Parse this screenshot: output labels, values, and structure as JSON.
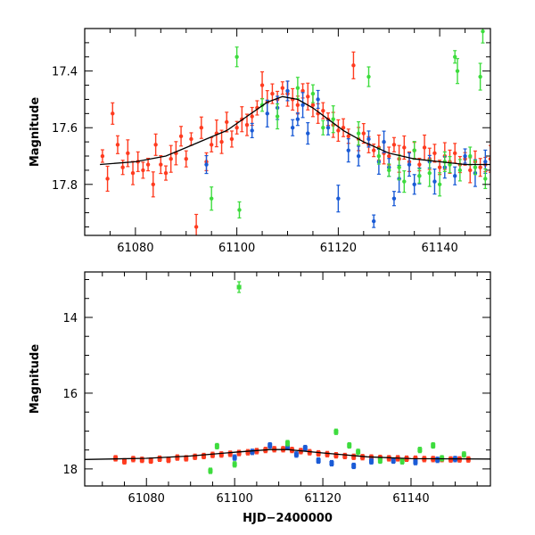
{
  "colors": {
    "red": "#ff3b1f",
    "blue": "#1a5bd6",
    "green": "#3ddc3d",
    "model": "#000000"
  },
  "chart_data": [
    {
      "type": "scatter",
      "title": "",
      "xlabel": "",
      "ylabel": "Magnitude",
      "xlim": [
        61070,
        61150
      ],
      "ylim": [
        17.98,
        17.25
      ],
      "y_inverted": true,
      "xticks": [
        61080,
        61100,
        61120,
        61140
      ],
      "xtick_labels": [
        "61080",
        "61100",
        "61120",
        "61140"
      ],
      "yticks": [
        17.4,
        17.6,
        17.8
      ],
      "ytick_labels": [
        "17.4",
        "17.6",
        "17.8"
      ],
      "series": [
        {
          "name": "red",
          "color_key": "red",
          "points": [
            [
              61073.5,
              17.7
            ],
            [
              61074.5,
              17.78
            ],
            [
              61075.5,
              17.55
            ],
            [
              61076.5,
              17.66
            ],
            [
              61077.5,
              17.74
            ],
            [
              61078.5,
              17.69
            ],
            [
              61079.5,
              17.76
            ],
            [
              61080.5,
              17.72
            ],
            [
              61081.5,
              17.75
            ],
            [
              61082.5,
              17.73
            ],
            [
              61083.5,
              17.8
            ],
            [
              61084,
              17.66
            ],
            [
              61085,
              17.73
            ],
            [
              61086,
              17.76
            ],
            [
              61087,
              17.71
            ],
            [
              61088,
              17.69
            ],
            [
              61089,
              17.63
            ],
            [
              61090,
              17.71
            ],
            [
              61091,
              17.64
            ],
            [
              61092,
              17.95
            ],
            [
              61093,
              17.6
            ],
            [
              61094,
              17.72
            ],
            [
              61095,
              17.66
            ],
            [
              61096,
              17.62
            ],
            [
              61097,
              17.65
            ],
            [
              61098,
              17.58
            ],
            [
              61099,
              17.64
            ],
            [
              61100,
              17.6
            ],
            [
              61101,
              17.57
            ],
            [
              61102,
              17.59
            ],
            [
              61103,
              17.56
            ],
            [
              61104,
              17.53
            ],
            [
              61105,
              17.45
            ],
            [
              61106,
              17.51
            ],
            [
              61107,
              17.48
            ],
            [
              61108,
              17.5
            ],
            [
              61109,
              17.46
            ],
            [
              61110,
              17.48
            ],
            [
              61111,
              17.5
            ],
            [
              61112,
              17.52
            ],
            [
              61113,
              17.47
            ],
            [
              61114,
              17.49
            ],
            [
              61115,
              17.52
            ],
            [
              61116,
              17.55
            ],
            [
              61117,
              17.54
            ],
            [
              61118,
              17.57
            ],
            [
              61119,
              17.59
            ],
            [
              61120,
              17.61
            ],
            [
              61121,
              17.6
            ],
            [
              61122,
              17.63
            ],
            [
              61123,
              17.38
            ],
            [
              61124,
              17.64
            ],
            [
              61125,
              17.62
            ],
            [
              61126,
              17.66
            ],
            [
              61127,
              17.68
            ],
            [
              61128,
              17.67
            ],
            [
              61129,
              17.69
            ],
            [
              61130,
              17.7
            ],
            [
              61131,
              17.66
            ],
            [
              61132,
              17.71
            ],
            [
              61133,
              17.67
            ],
            [
              61134,
              17.72
            ],
            [
              61135,
              17.68
            ],
            [
              61136,
              17.73
            ],
            [
              61137,
              17.67
            ],
            [
              61138,
              17.71
            ],
            [
              61139,
              17.69
            ],
            [
              61140,
              17.74
            ],
            [
              61141,
              17.7
            ],
            [
              61142,
              17.72
            ],
            [
              61143,
              17.69
            ],
            [
              61144,
              17.73
            ],
            [
              61145,
              17.71
            ],
            [
              61146,
              17.75
            ],
            [
              61147,
              17.72
            ],
            [
              61148,
              17.74
            ],
            [
              61149,
              17.73
            ],
            [
              61150,
              17.71
            ]
          ]
        },
        {
          "name": "blue",
          "color_key": "blue",
          "points": [
            [
              61094,
              17.73
            ],
            [
              61103,
              17.61
            ],
            [
              61106,
              17.55
            ],
            [
              61108,
              17.53
            ],
            [
              61110,
              17.47
            ],
            [
              61111,
              17.6
            ],
            [
              61112,
              17.57
            ],
            [
              61113,
              17.52
            ],
            [
              61114,
              17.62
            ],
            [
              61116,
              17.5
            ],
            [
              61118,
              17.6
            ],
            [
              61120,
              17.85
            ],
            [
              61122,
              17.68
            ],
            [
              61124,
              17.7
            ],
            [
              61126,
              17.64
            ],
            [
              61127,
              17.93
            ],
            [
              61128,
              17.72
            ],
            [
              61129,
              17.65
            ],
            [
              61130,
              17.74
            ],
            [
              61131,
              17.85
            ],
            [
              61132,
              17.78
            ],
            [
              61134,
              17.73
            ],
            [
              61135,
              17.8
            ],
            [
              61136,
              17.77
            ],
            [
              61138,
              17.72
            ],
            [
              61139,
              17.79
            ],
            [
              61141,
              17.74
            ],
            [
              61143,
              17.77
            ],
            [
              61145,
              17.7
            ],
            [
              61147,
              17.76
            ],
            [
              61149,
              17.72
            ]
          ]
        },
        {
          "name": "green",
          "color_key": "green",
          "points": [
            [
              61095,
              17.85
            ],
            [
              61100,
              17.35
            ],
            [
              61100.5,
              17.89
            ],
            [
              61105,
              17.52
            ],
            [
              61108,
              17.56
            ],
            [
              61112,
              17.46
            ],
            [
              61115,
              17.48
            ],
            [
              61117,
              17.6
            ],
            [
              61119,
              17.57
            ],
            [
              61124,
              17.62
            ],
            [
              61126,
              17.42
            ],
            [
              61128,
              17.7
            ],
            [
              61130,
              17.75
            ],
            [
              61132,
              17.74
            ],
            [
              61133,
              17.79
            ],
            [
              61135,
              17.68
            ],
            [
              61136,
              17.77
            ],
            [
              61138,
              17.76
            ],
            [
              61140,
              17.8
            ],
            [
              61141,
              17.72
            ],
            [
              61142,
              17.73
            ],
            [
              61143,
              17.35
            ],
            [
              61143.5,
              17.4
            ],
            [
              61144,
              17.75
            ],
            [
              61146,
              17.7
            ],
            [
              61147,
              17.74
            ],
            [
              61148,
              17.42
            ],
            [
              61148.5,
              17.26
            ],
            [
              61149,
              17.78
            ]
          ]
        }
      ],
      "model_line": [
        [
          61073,
          17.73
        ],
        [
          61080,
          17.72
        ],
        [
          61086,
          17.7
        ],
        [
          61090,
          17.67
        ],
        [
          61094,
          17.64
        ],
        [
          61098,
          17.61
        ],
        [
          61102,
          17.56
        ],
        [
          61106,
          17.51
        ],
        [
          61109,
          17.49
        ],
        [
          61112,
          17.5
        ],
        [
          61115,
          17.53
        ],
        [
          61118,
          17.57
        ],
        [
          61121,
          17.61
        ],
        [
          61125,
          17.65
        ],
        [
          61130,
          17.69
        ],
        [
          61135,
          17.71
        ],
        [
          61140,
          17.72
        ],
        [
          61145,
          17.73
        ],
        [
          61150,
          17.73
        ]
      ]
    },
    {
      "type": "scatter",
      "title": "",
      "xlabel": "HJD−2400000",
      "ylabel": "Magnitude",
      "xlim": [
        61066,
        61158
      ],
      "ylim": [
        18.45,
        12.8
      ],
      "y_inverted": true,
      "xticks": [
        61080,
        61100,
        61120,
        61140
      ],
      "xtick_labels": [
        "61080",
        "61100",
        "61120",
        "61140"
      ],
      "yticks": [
        14,
        16,
        18
      ],
      "ytick_labels": [
        "14",
        "16",
        "18"
      ],
      "series": [
        {
          "name": "red",
          "color_key": "red",
          "points": [
            [
              61073,
              17.72
            ],
            [
              61075,
              17.8
            ],
            [
              61077,
              17.74
            ],
            [
              61079,
              17.76
            ],
            [
              61081,
              17.78
            ],
            [
              61083,
              17.73
            ],
            [
              61085,
              17.76
            ],
            [
              61087,
              17.7
            ],
            [
              61089,
              17.72
            ],
            [
              61091,
              17.68
            ],
            [
              61093,
              17.66
            ],
            [
              61095,
              17.63
            ],
            [
              61097,
              17.62
            ],
            [
              61099,
              17.6
            ],
            [
              61101,
              17.58
            ],
            [
              61103,
              17.56
            ],
            [
              61105,
              17.53
            ],
            [
              61107,
              17.5
            ],
            [
              61109,
              17.48
            ],
            [
              61111,
              17.48
            ],
            [
              61113,
              17.5
            ],
            [
              61115,
              17.53
            ],
            [
              61117,
              17.56
            ],
            [
              61119,
              17.59
            ],
            [
              61121,
              17.61
            ],
            [
              61123,
              17.64
            ],
            [
              61125,
              17.66
            ],
            [
              61127,
              17.68
            ],
            [
              61129,
              17.69
            ],
            [
              61131,
              17.7
            ],
            [
              61133,
              17.71
            ],
            [
              61135,
              17.72
            ],
            [
              61137,
              17.72
            ],
            [
              61139,
              17.73
            ],
            [
              61141,
              17.73
            ],
            [
              61143,
              17.74
            ],
            [
              61145,
              17.74
            ],
            [
              61147,
              17.74
            ],
            [
              61149,
              17.75
            ],
            [
              61151,
              17.75
            ],
            [
              61153,
              17.75
            ]
          ]
        },
        {
          "name": "blue",
          "color_key": "blue",
          "points": [
            [
              61100,
              17.7
            ],
            [
              61104,
              17.55
            ],
            [
              61108,
              17.38
            ],
            [
              61112,
              17.42
            ],
            [
              61114,
              17.62
            ],
            [
              61116,
              17.45
            ],
            [
              61119,
              17.78
            ],
            [
              61122,
              17.85
            ],
            [
              61127,
              17.92
            ],
            [
              61131,
              17.8
            ],
            [
              61136,
              17.78
            ],
            [
              61141,
              17.82
            ],
            [
              61146,
              17.76
            ],
            [
              61150,
              17.74
            ]
          ]
        },
        {
          "name": "green",
          "color_key": "green",
          "points": [
            [
              61094.5,
              18.05
            ],
            [
              61096,
              17.4
            ],
            [
              61100,
              17.88
            ],
            [
              61112,
              17.32
            ],
            [
              61123,
              17.02
            ],
            [
              61126,
              17.38
            ],
            [
              61128,
              17.55
            ],
            [
              61133,
              17.78
            ],
            [
              61138,
              17.8
            ],
            [
              61142,
              17.5
            ],
            [
              61145,
              17.38
            ],
            [
              61147,
              17.72
            ],
            [
              61152,
              17.62
            ]
          ]
        }
      ],
      "outliers": [
        {
          "series": "green",
          "x": 61101,
          "y": 13.2
        }
      ],
      "model_line": [
        [
          61066,
          17.75
        ],
        [
          61080,
          17.72
        ],
        [
          61090,
          17.66
        ],
        [
          61100,
          17.56
        ],
        [
          61108,
          17.49
        ],
        [
          61112,
          17.49
        ],
        [
          61120,
          17.58
        ],
        [
          61130,
          17.68
        ],
        [
          61140,
          17.73
        ],
        [
          61158,
          17.74
        ]
      ]
    }
  ]
}
